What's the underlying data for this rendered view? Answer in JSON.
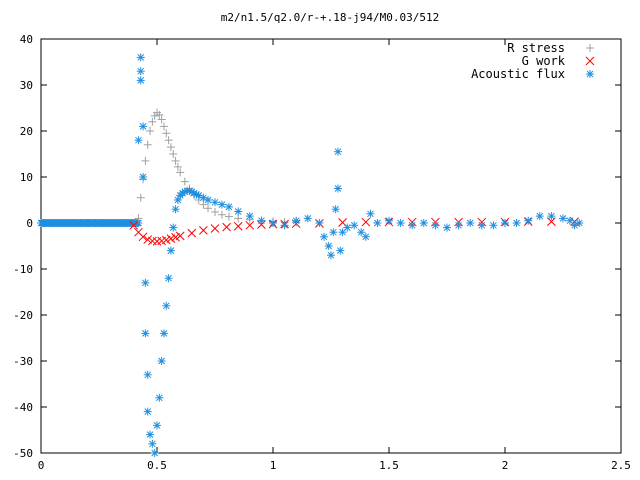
{
  "chart_data": {
    "type": "scatter",
    "title": "m2/n1.5/q2.0/r-+.18-j94/M0.03/512",
    "xlabel": "",
    "ylabel": "",
    "xlim": [
      0,
      2.5
    ],
    "ylim": [
      -50,
      40
    ],
    "x_ticks": [
      {
        "value": 0,
        "label": "0"
      },
      {
        "value": 0.5,
        "label": "0.5"
      },
      {
        "value": 1,
        "label": "1"
      },
      {
        "value": 1.5,
        "label": "1.5"
      },
      {
        "value": 2,
        "label": "2"
      },
      {
        "value": 2.5,
        "label": "2.5"
      }
    ],
    "y_ticks": [
      {
        "value": 40,
        "label": "40"
      },
      {
        "value": 30,
        "label": "30"
      },
      {
        "value": 20,
        "label": "20"
      },
      {
        "value": 10,
        "label": "10"
      },
      {
        "value": 0,
        "label": "0"
      },
      {
        "value": -10,
        "label": "-10"
      },
      {
        "value": -20,
        "label": "-20"
      },
      {
        "value": -30,
        "label": "-30"
      },
      {
        "value": -40,
        "label": "-40"
      },
      {
        "value": -50,
        "label": "-50"
      }
    ],
    "grid": false,
    "legend_position": "top-right",
    "series": [
      {
        "name": "R stress",
        "marker": "plus",
        "color": "#a0a0a0",
        "x": [
          0.42,
          0.43,
          0.44,
          0.45,
          0.46,
          0.47,
          0.48,
          0.49,
          0.5,
          0.51,
          0.52,
          0.53,
          0.54,
          0.55,
          0.56,
          0.57,
          0.58,
          0.59,
          0.6,
          0.62,
          0.64,
          0.66,
          0.68,
          0.7,
          0.72,
          0.75,
          0.78,
          0.81,
          0.85,
          0.9,
          0.95,
          1.0,
          1.05,
          1.1
        ],
        "y": [
          1.0,
          5.5,
          9.5,
          13.5,
          17.0,
          20.0,
          22.0,
          23.3,
          24.0,
          23.5,
          22.5,
          21.0,
          19.5,
          18.0,
          16.5,
          15.0,
          13.5,
          12.2,
          11.0,
          9.0,
          7.5,
          6.0,
          5.0,
          4.0,
          3.2,
          2.4,
          1.8,
          1.4,
          1.0,
          0.7,
          0.5,
          0.3,
          0.2,
          0.1
        ]
      },
      {
        "name": "G work",
        "marker": "x",
        "color": "#ff0000",
        "x": [
          0.4,
          0.42,
          0.44,
          0.46,
          0.48,
          0.5,
          0.52,
          0.54,
          0.56,
          0.58,
          0.6,
          0.65,
          0.7,
          0.75,
          0.8,
          0.85,
          0.9,
          0.95,
          1.0,
          1.05,
          1.1,
          1.2,
          1.3,
          1.4,
          1.5,
          1.6,
          1.7,
          1.8,
          1.9,
          2.0,
          2.1,
          2.2,
          2.3
        ],
        "y": [
          -0.5,
          -2.0,
          -3.0,
          -3.6,
          -3.9,
          -4.0,
          -3.9,
          -3.7,
          -3.4,
          -3.1,
          -2.8,
          -2.2,
          -1.6,
          -1.2,
          -0.9,
          -0.7,
          -0.5,
          -0.35,
          -0.25,
          -0.2,
          -0.15,
          -0.1,
          0.1,
          0.2,
          0.2,
          0.2,
          0.2,
          0.2,
          0.2,
          0.2,
          0.3,
          0.3,
          0.3
        ]
      },
      {
        "name": "Acoustic flux",
        "marker": "star",
        "color": "#1f8fe0",
        "x": [
          0.42,
          0.43,
          0.43,
          0.43,
          0.44,
          0.44,
          0.45,
          0.45,
          0.46,
          0.46,
          0.47,
          0.48,
          0.49,
          0.5,
          0.51,
          0.52,
          0.53,
          0.54,
          0.55,
          0.56,
          0.57,
          0.58,
          0.59,
          0.6,
          0.61,
          0.62,
          0.63,
          0.64,
          0.65,
          0.66,
          0.67,
          0.68,
          0.7,
          0.72,
          0.75,
          0.78,
          0.81,
          0.85,
          0.9,
          0.95,
          1.0,
          1.05,
          1.1,
          1.15,
          1.2,
          1.22,
          1.24,
          1.25,
          1.26,
          1.27,
          1.28,
          1.28,
          1.29,
          1.3,
          1.32,
          1.35,
          1.38,
          1.4,
          1.42,
          1.45,
          1.5,
          1.55,
          1.6,
          1.65,
          1.7,
          1.75,
          1.8,
          1.85,
          1.9,
          1.95,
          2.0,
          2.05,
          2.1,
          2.15,
          2.2,
          2.25,
          2.28,
          2.3,
          2.32
        ],
        "y": [
          18.0,
          36.0,
          33.0,
          31.0,
          21.0,
          10.0,
          -13.0,
          -24.0,
          -33.0,
          -41.0,
          -46.0,
          -48.0,
          -50.0,
          -44.0,
          -38.0,
          -30.0,
          -24.0,
          -18.0,
          -12.0,
          -6.0,
          -1.0,
          3.0,
          5.0,
          6.0,
          6.5,
          6.8,
          7.0,
          7.0,
          6.8,
          6.5,
          6.2,
          6.0,
          5.5,
          5.0,
          4.5,
          4.0,
          3.5,
          2.5,
          1.5,
          0.5,
          0.0,
          -0.5,
          0.5,
          1.0,
          0.0,
          -3.0,
          -5.0,
          -7.0,
          -2.0,
          3.0,
          7.5,
          15.5,
          -6.0,
          -2.0,
          -1.0,
          -0.5,
          -2.0,
          -3.0,
          2.0,
          0.0,
          0.5,
          0.0,
          -0.5,
          0.0,
          -0.5,
          -1.0,
          -0.5,
          0.0,
          -0.5,
          -0.5,
          0.0,
          0.0,
          0.5,
          1.5,
          1.5,
          1.0,
          0.5,
          -0.5,
          0.0
        ]
      }
    ]
  }
}
